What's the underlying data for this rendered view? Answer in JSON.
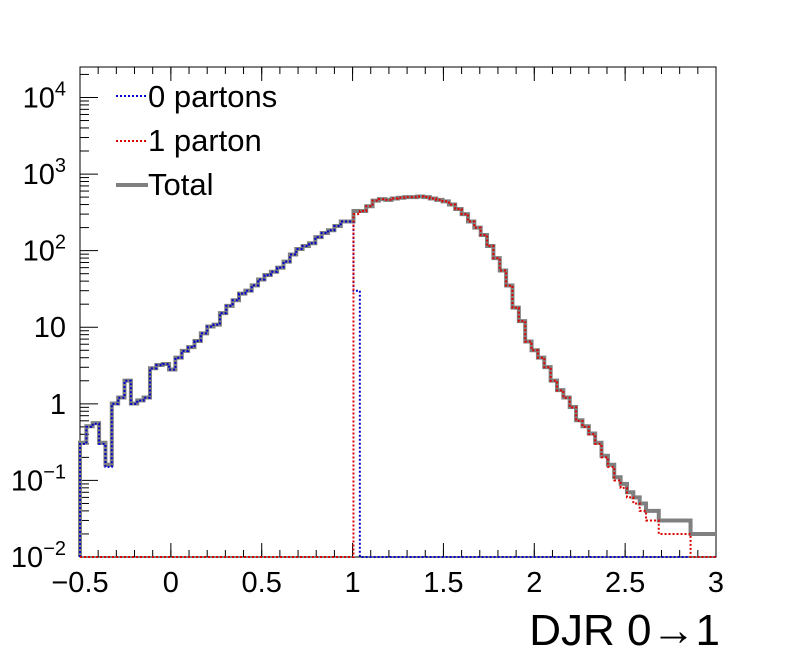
{
  "chart_data": {
    "type": "line",
    "style": "step-histogram",
    "xlabel": "DJR 0→1",
    "ylabel": "",
    "xlim": [
      -0.5,
      3.0
    ],
    "ylim": [
      0.01,
      25000
    ],
    "yscale": "log",
    "grid": false,
    "legend_position": "top-left",
    "x_ticks": [
      -0.5,
      0,
      0.5,
      1,
      1.5,
      2,
      2.5,
      3
    ],
    "x_tick_labels": [
      "−0.5",
      "0",
      "0.5",
      "1",
      "1.5",
      "2",
      "2.5",
      "3"
    ],
    "y_ticks": [
      {
        "value": 10000,
        "base": "10",
        "exp": "4"
      },
      {
        "value": 1000,
        "base": "10",
        "exp": "3"
      },
      {
        "value": 100,
        "base": "10",
        "exp": "2"
      },
      {
        "value": 10,
        "base": "10",
        "exp": ""
      },
      {
        "value": 1,
        "base": "1",
        "exp": ""
      },
      {
        "value": 0.1,
        "base": "10",
        "exp": "−1"
      },
      {
        "value": 0.01,
        "base": "10",
        "exp": "−2"
      }
    ],
    "bin_edges": [
      -0.5,
      -0.465,
      -0.43,
      -0.395,
      -0.36,
      -0.325,
      -0.29,
      -0.255,
      -0.22,
      -0.185,
      -0.15,
      -0.115,
      -0.08,
      -0.045,
      -0.01,
      0.025,
      0.06,
      0.095,
      0.13,
      0.165,
      0.2,
      0.235,
      0.27,
      0.305,
      0.34,
      0.375,
      0.41,
      0.445,
      0.48,
      0.515,
      0.55,
      0.585,
      0.62,
      0.655,
      0.69,
      0.725,
      0.76,
      0.795,
      0.83,
      0.865,
      0.9,
      0.935,
      0.97,
      1.005,
      1.04,
      1.075,
      1.11,
      1.145,
      1.18,
      1.215,
      1.25,
      1.285,
      1.32,
      1.355,
      1.39,
      1.425,
      1.46,
      1.495,
      1.53,
      1.565,
      1.6,
      1.635,
      1.67,
      1.705,
      1.74,
      1.775,
      1.81,
      1.845,
      1.88,
      1.915,
      1.95,
      1.985,
      2.02,
      2.055,
      2.09,
      2.125,
      2.16,
      2.195,
      2.23,
      2.265,
      2.3,
      2.335,
      2.37,
      2.405,
      2.44,
      2.475,
      2.51,
      2.545,
      2.58,
      2.615,
      2.65,
      2.685,
      2.72,
      2.755,
      2.79,
      2.825,
      2.86,
      2.895,
      2.93,
      2.965,
      3.0
    ],
    "series": [
      {
        "name": "0 partons",
        "color": "#0000cc",
        "line_style": "dotted",
        "values": [
          0.3,
          0.5,
          0.55,
          0.3,
          0.15,
          1.0,
          1.2,
          2.0,
          1.0,
          1.1,
          1.2,
          2.9,
          3.2,
          3.3,
          2.8,
          4.0,
          4.9,
          5.5,
          6.6,
          8.3,
          10.2,
          10.8,
          15.3,
          19.0,
          22.5,
          27.5,
          30.0,
          35.2,
          42.0,
          48.0,
          53.0,
          60.0,
          72.0,
          89.0,
          105.0,
          115.0,
          125.0,
          150.0,
          170.0,
          185.0,
          210.0,
          240.0,
          240.0,
          30.0,
          0.01,
          0.01,
          0.01,
          0.01,
          0.01,
          0.01,
          0.01,
          0.01,
          0.01,
          0.01,
          0.01,
          0.01,
          0.01,
          0.01,
          0.01,
          0.01,
          0.01,
          0.01,
          0.01,
          0.01,
          0.01,
          0.01,
          0.01,
          0.01,
          0.01,
          0.01,
          0.01,
          0.01,
          0.01,
          0.01,
          0.01,
          0.01,
          0.01,
          0.01,
          0.01,
          0.01,
          0.01,
          0.01,
          0.01,
          0.01,
          0.01,
          0.01,
          0.01,
          0.01,
          0.01,
          0.01,
          0.01,
          0.01,
          0.01,
          0.01,
          0.01,
          0.01,
          0.01,
          0.01,
          0.01,
          0.01
        ]
      },
      {
        "name": "1 parton",
        "color": "#dd0000",
        "line_style": "dotted",
        "values": [
          0.01,
          0.01,
          0.01,
          0.01,
          0.01,
          0.01,
          0.01,
          0.01,
          0.01,
          0.01,
          0.01,
          0.01,
          0.01,
          0.01,
          0.01,
          0.01,
          0.01,
          0.01,
          0.01,
          0.01,
          0.01,
          0.01,
          0.01,
          0.01,
          0.01,
          0.01,
          0.01,
          0.01,
          0.01,
          0.01,
          0.01,
          0.01,
          0.01,
          0.01,
          0.01,
          0.01,
          0.01,
          0.01,
          0.01,
          0.01,
          0.01,
          0.01,
          0.01,
          300.0,
          330.0,
          380.0,
          450.0,
          470.0,
          460.0,
          480.0,
          490.0,
          500.0,
          500.0,
          510.0,
          500.0,
          480.0,
          460.0,
          440.0,
          400.0,
          350.0,
          300.0,
          240.0,
          200.0,
          160.0,
          115.0,
          80.0,
          55.0,
          35.0,
          18.0,
          12.0,
          6.5,
          5.0,
          4.0,
          3.0,
          2.0,
          1.5,
          1.2,
          0.9,
          0.6,
          0.5,
          0.4,
          0.3,
          0.2,
          0.15,
          0.1,
          0.08,
          0.06,
          0.05,
          0.04,
          0.03,
          0.03,
          0.02,
          0.02,
          0.02,
          0.02,
          0.02,
          0.01,
          0.01,
          0.01,
          0.01,
          0.01
        ]
      },
      {
        "name": "Total",
        "color": "#808080",
        "line_style": "solid",
        "values": []
      }
    ]
  }
}
